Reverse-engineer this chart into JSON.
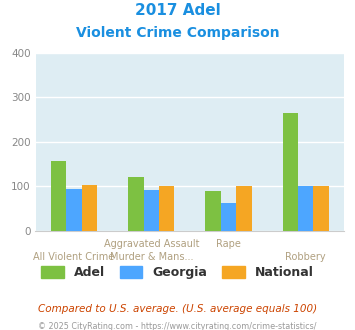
{
  "title_line1": "2017 Adel",
  "title_line2": "Violent Crime Comparison",
  "x_top_labels": [
    "",
    "Aggravated Assault",
    "Rape",
    ""
  ],
  "x_bot_labels": [
    "All Violent Crime",
    "Murder & Mans...",
    "",
    "Robbery"
  ],
  "adel": [
    157,
    122,
    90,
    265
  ],
  "georgia": [
    95,
    93,
    63,
    102
  ],
  "national": [
    103,
    101,
    102,
    101
  ],
  "adel_color": "#7dc142",
  "georgia_color": "#4da6ff",
  "national_color": "#f5a623",
  "bg_color": "#deedf3",
  "ylim": [
    0,
    400
  ],
  "yticks": [
    0,
    100,
    200,
    300,
    400
  ],
  "footnote1": "Compared to U.S. average. (U.S. average equals 100)",
  "footnote2": "© 2025 CityRating.com - https://www.cityrating.com/crime-statistics/",
  "title_color": "#1a8fe0",
  "xtick_color": "#b0a080",
  "footnote1_color": "#cc4400",
  "footnote2_color": "#999999",
  "legend_color": "#333333",
  "ytick_color": "#888888",
  "grid_color": "#ffffff",
  "spine_color": "#cccccc"
}
